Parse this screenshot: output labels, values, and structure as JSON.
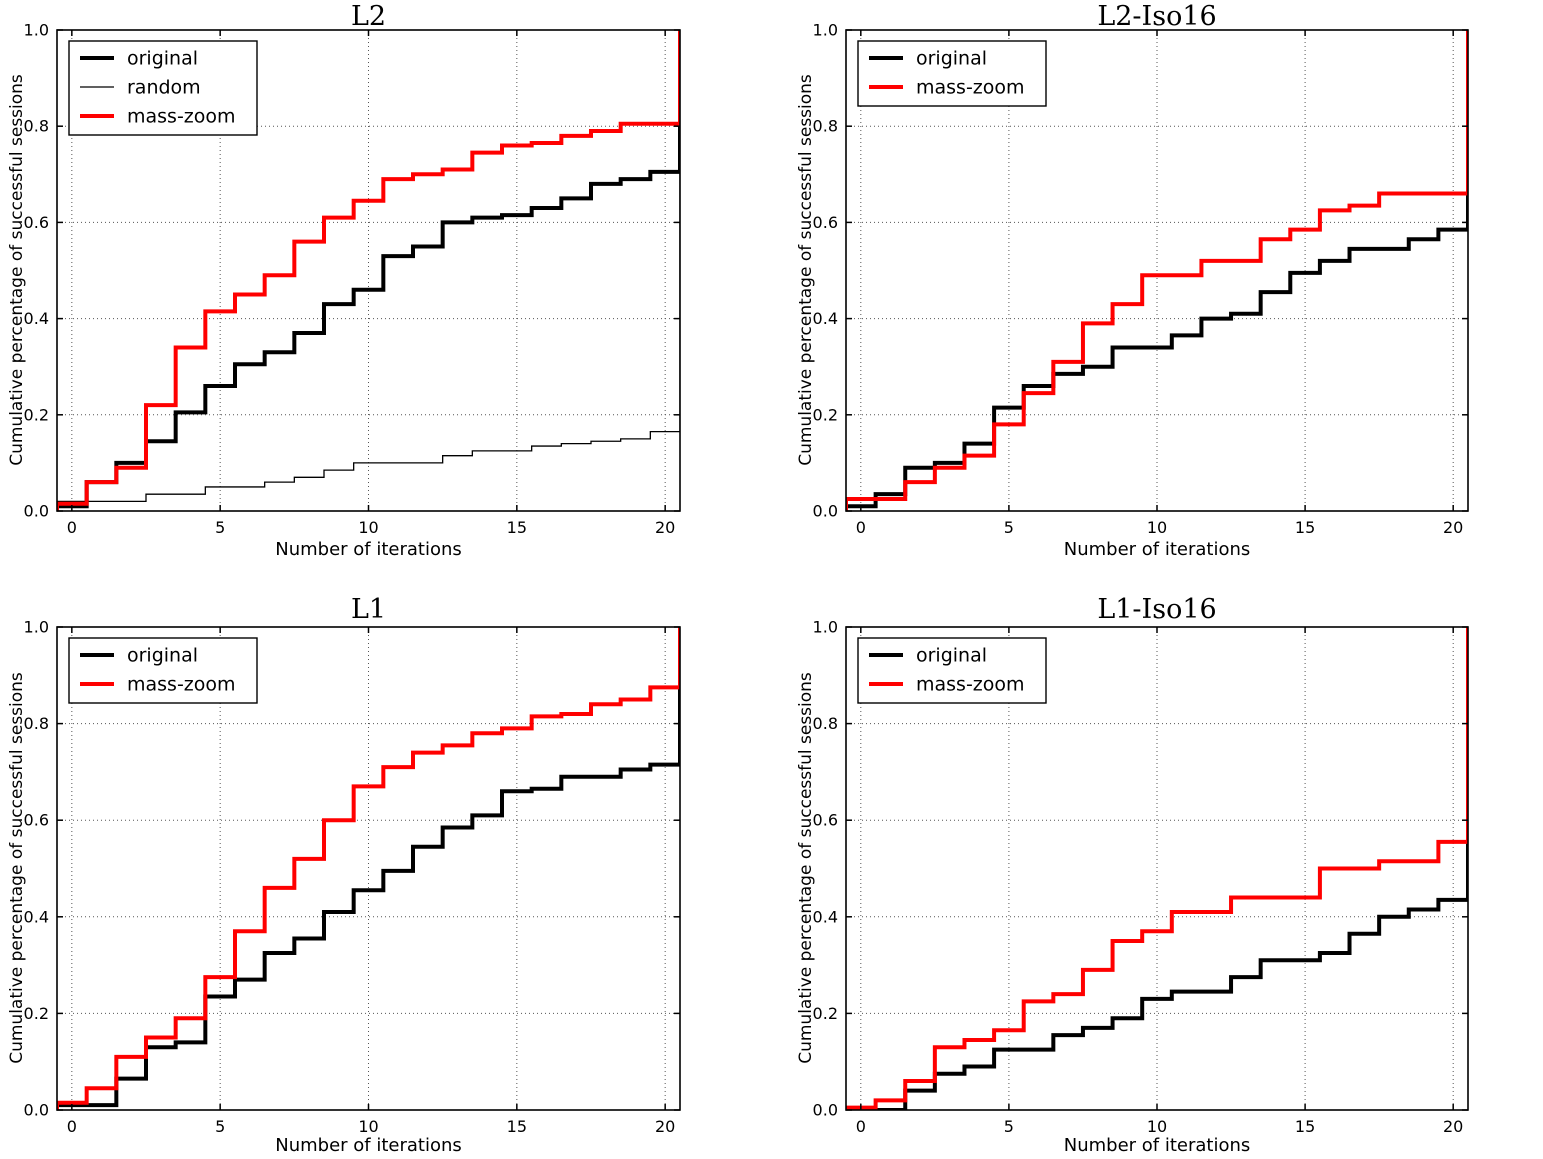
{
  "figure": {
    "background": "#ffffff",
    "grid_color": "#555555",
    "spine_color": "#000000"
  },
  "chart_data": [
    {
      "type": "line",
      "subtype": "cumulative-step-histogram",
      "title": "L2",
      "xlabel": "Number of iterations",
      "ylabel": "Cumulative percentage of successful sessions",
      "xlim": [
        -0.5,
        20.5
      ],
      "ylim": [
        0.0,
        1.0
      ],
      "xtick_values": [
        0,
        5,
        10,
        15,
        20
      ],
      "xtick_labels": [
        "0",
        "5",
        "10",
        "15",
        "20"
      ],
      "ytick_values": [
        0.0,
        0.2,
        0.4,
        0.6,
        0.8,
        1.0
      ],
      "ytick_labels": [
        "0.0",
        "0.2",
        "0.4",
        "0.6",
        "0.8",
        "1.0"
      ],
      "grid": true,
      "legend_position": "upper-left",
      "x": [
        0,
        1,
        2,
        3,
        4,
        5,
        6,
        7,
        8,
        9,
        10,
        11,
        12,
        13,
        14,
        15,
        16,
        17,
        18,
        19,
        20
      ],
      "final_jump": {
        "x": 20.5,
        "y": 1.0
      },
      "series": [
        {
          "name": "original",
          "color": "#000000",
          "linewidth": 4,
          "levels": [
            0.01,
            0.06,
            0.1,
            0.145,
            0.205,
            0.26,
            0.305,
            0.33,
            0.37,
            0.43,
            0.46,
            0.53,
            0.55,
            0.6,
            0.61,
            0.615,
            0.63,
            0.65,
            0.68,
            0.69,
            0.705
          ]
        },
        {
          "name": "random",
          "color": "#000000",
          "linewidth": 1.3,
          "levels": [
            0.02,
            0.02,
            0.02,
            0.035,
            0.035,
            0.05,
            0.05,
            0.06,
            0.07,
            0.085,
            0.1,
            0.1,
            0.1,
            0.115,
            0.125,
            0.125,
            0.135,
            0.14,
            0.145,
            0.15,
            0.165
          ]
        },
        {
          "name": "mass-zoom",
          "color": "#ff0000",
          "linewidth": 4,
          "levels": [
            0.015,
            0.06,
            0.09,
            0.22,
            0.34,
            0.415,
            0.45,
            0.49,
            0.56,
            0.61,
            0.645,
            0.69,
            0.7,
            0.71,
            0.745,
            0.76,
            0.765,
            0.78,
            0.79,
            0.805,
            0.805
          ]
        }
      ]
    },
    {
      "type": "line",
      "subtype": "cumulative-step-histogram",
      "title": "L2-Iso16",
      "xlabel": "Number of iterations",
      "ylabel": "Cumulative percentage of successful sessions",
      "xlim": [
        -0.5,
        20.5
      ],
      "ylim": [
        0.0,
        1.0
      ],
      "xtick_values": [
        0,
        5,
        10,
        15,
        20
      ],
      "xtick_labels": [
        "0",
        "5",
        "10",
        "15",
        "20"
      ],
      "ytick_values": [
        0.0,
        0.2,
        0.4,
        0.6,
        0.8,
        1.0
      ],
      "ytick_labels": [
        "0.0",
        "0.2",
        "0.4",
        "0.6",
        "0.8",
        "1.0"
      ],
      "grid": true,
      "legend_position": "upper-left",
      "x": [
        0,
        1,
        2,
        3,
        4,
        5,
        6,
        7,
        8,
        9,
        10,
        11,
        12,
        13,
        14,
        15,
        16,
        17,
        18,
        19,
        20
      ],
      "final_jump": {
        "x": 20.5,
        "y": 1.0
      },
      "series": [
        {
          "name": "original",
          "color": "#000000",
          "linewidth": 4,
          "levels": [
            0.01,
            0.035,
            0.09,
            0.1,
            0.14,
            0.215,
            0.26,
            0.285,
            0.3,
            0.34,
            0.34,
            0.365,
            0.4,
            0.41,
            0.455,
            0.495,
            0.52,
            0.545,
            0.545,
            0.565,
            0.585
          ]
        },
        {
          "name": "mass-zoom",
          "color": "#ff0000",
          "linewidth": 4,
          "levels": [
            0.025,
            0.025,
            0.06,
            0.09,
            0.115,
            0.18,
            0.245,
            0.31,
            0.39,
            0.43,
            0.49,
            0.49,
            0.52,
            0.52,
            0.565,
            0.585,
            0.625,
            0.635,
            0.66,
            0.66,
            0.66
          ]
        }
      ]
    },
    {
      "type": "line",
      "subtype": "cumulative-step-histogram",
      "title": "L1",
      "xlabel": "Number of iterations",
      "ylabel": "Cumulative percentage of successful sessions",
      "xlim": [
        -0.5,
        20.5
      ],
      "ylim": [
        0.0,
        1.0
      ],
      "xtick_values": [
        0,
        5,
        10,
        15,
        20
      ],
      "xtick_labels": [
        "0",
        "5",
        "10",
        "15",
        "20"
      ],
      "ytick_values": [
        0.0,
        0.2,
        0.4,
        0.6,
        0.8,
        1.0
      ],
      "ytick_labels": [
        "0.0",
        "0.2",
        "0.4",
        "0.6",
        "0.8",
        "1.0"
      ],
      "grid": true,
      "legend_position": "upper-left",
      "x": [
        0,
        1,
        2,
        3,
        4,
        5,
        6,
        7,
        8,
        9,
        10,
        11,
        12,
        13,
        14,
        15,
        16,
        17,
        18,
        19,
        20
      ],
      "final_jump": {
        "x": 20.5,
        "y": 1.0
      },
      "series": [
        {
          "name": "original",
          "color": "#000000",
          "linewidth": 4,
          "levels": [
            0.01,
            0.01,
            0.065,
            0.13,
            0.14,
            0.235,
            0.27,
            0.325,
            0.355,
            0.41,
            0.455,
            0.495,
            0.545,
            0.585,
            0.61,
            0.66,
            0.665,
            0.69,
            0.69,
            0.705,
            0.715
          ]
        },
        {
          "name": "mass-zoom",
          "color": "#ff0000",
          "linewidth": 4,
          "levels": [
            0.015,
            0.045,
            0.11,
            0.15,
            0.19,
            0.275,
            0.37,
            0.46,
            0.52,
            0.6,
            0.67,
            0.71,
            0.74,
            0.755,
            0.78,
            0.79,
            0.815,
            0.82,
            0.84,
            0.85,
            0.875
          ]
        }
      ]
    },
    {
      "type": "line",
      "subtype": "cumulative-step-histogram",
      "title": "L1-Iso16",
      "xlabel": "Number of iterations",
      "ylabel": "Cumulative percentage of successful sessions",
      "xlim": [
        -0.5,
        20.5
      ],
      "ylim": [
        0.0,
        1.0
      ],
      "xtick_values": [
        0,
        5,
        10,
        15,
        20
      ],
      "xtick_labels": [
        "0",
        "5",
        "10",
        "15",
        "20"
      ],
      "ytick_values": [
        0.0,
        0.2,
        0.4,
        0.6,
        0.8,
        1.0
      ],
      "ytick_labels": [
        "0.0",
        "0.2",
        "0.4",
        "0.6",
        "0.8",
        "1.0"
      ],
      "grid": true,
      "legend_position": "upper-left",
      "x": [
        0,
        1,
        2,
        3,
        4,
        5,
        6,
        7,
        8,
        9,
        10,
        11,
        12,
        13,
        14,
        15,
        16,
        17,
        18,
        19,
        20
      ],
      "final_jump": {
        "x": 20.5,
        "y": 1.0
      },
      "series": [
        {
          "name": "original",
          "color": "#000000",
          "linewidth": 4,
          "levels": [
            0.0,
            0.0,
            0.04,
            0.075,
            0.09,
            0.125,
            0.125,
            0.155,
            0.17,
            0.19,
            0.23,
            0.245,
            0.245,
            0.275,
            0.31,
            0.31,
            0.325,
            0.365,
            0.4,
            0.415,
            0.435
          ]
        },
        {
          "name": "mass-zoom",
          "color": "#ff0000",
          "linewidth": 4,
          "levels": [
            0.005,
            0.02,
            0.06,
            0.13,
            0.145,
            0.165,
            0.225,
            0.24,
            0.29,
            0.35,
            0.37,
            0.41,
            0.41,
            0.44,
            0.44,
            0.44,
            0.5,
            0.5,
            0.515,
            0.515,
            0.555
          ]
        }
      ]
    }
  ]
}
